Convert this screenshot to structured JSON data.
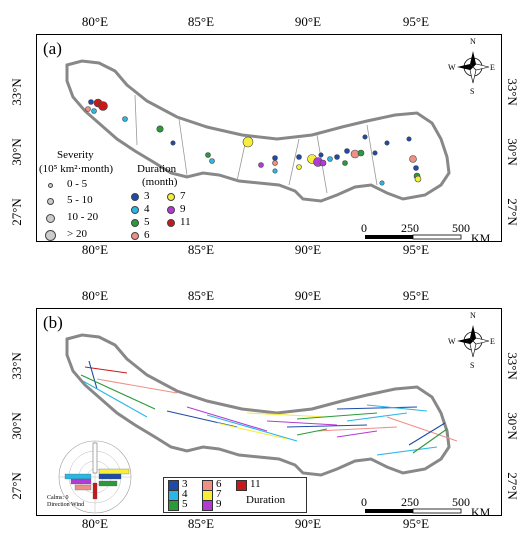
{
  "panels": {
    "a": {
      "label": "(a)"
    },
    "b": {
      "label": "(b)"
    }
  },
  "axes": {
    "lon_labels": [
      "80°E",
      "85°E",
      "90°E",
      "95°E"
    ],
    "lat_labels": [
      "33°N",
      "30°N",
      "27°N"
    ]
  },
  "legend_a": {
    "severity_title_line1": "Severity",
    "severity_title_line2": "(10⁵ km²·month)",
    "severity_classes": [
      "0 - 5",
      "5 - 10",
      "10 - 20",
      "> 20"
    ],
    "duration_title_line1": "Duration",
    "duration_title_line2": "(month)",
    "duration_classes": [
      "3",
      "4",
      "5",
      "6",
      "7",
      "9",
      "11"
    ]
  },
  "legend_b": {
    "duration_classes": [
      "3",
      "4",
      "5",
      "6",
      "7",
      "9",
      "11"
    ],
    "duration_title": "Duration"
  },
  "duration_colors": {
    "3": "#1f4aa8",
    "4": "#2bb7e6",
    "5": "#2a9a3a",
    "6": "#f08f86",
    "7": "#f5ee3a",
    "9": "#b43ad6",
    "11": "#c41a1a"
  },
  "scale_bar": {
    "ticks": [
      "0",
      "250",
      "500"
    ],
    "unit": "KM"
  },
  "compass": {
    "n": "N",
    "s": "S",
    "e": "E",
    "w": "W"
  },
  "rose": {
    "caption_line1": "Calms: 0",
    "caption_line2": "Direction Wind"
  }
}
